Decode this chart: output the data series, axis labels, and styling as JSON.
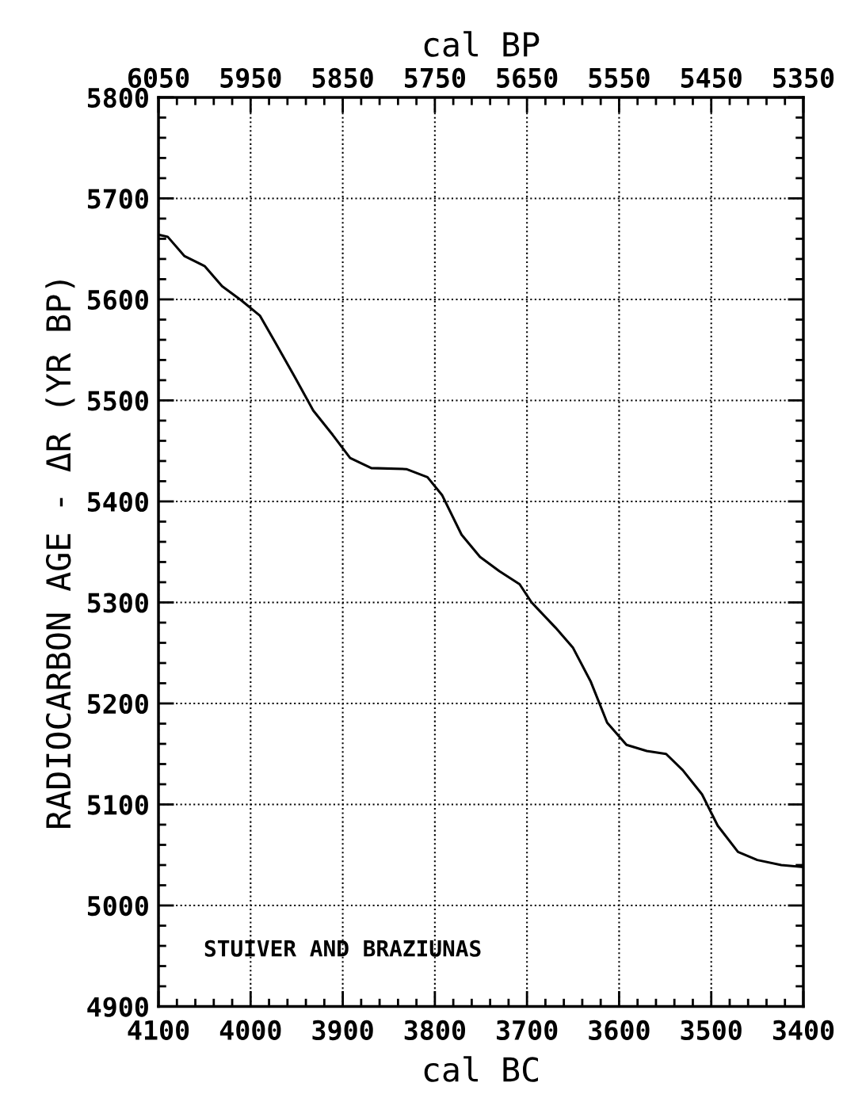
{
  "chart_data": {
    "type": "line",
    "xlabel": "cal BC",
    "x2label": "cal BP",
    "ylabel": "RADIOCARBON AGE - ΔR (YR BP)",
    "annotations": [
      "STUIVER AND BRAZIUNAS"
    ],
    "xlim": [
      4100,
      3400
    ],
    "xticks": [
      4100,
      4000,
      3900,
      3800,
      3700,
      3600,
      3500,
      3400
    ],
    "x2lim": [
      6050,
      5350
    ],
    "x2ticks": [
      6050,
      5950,
      5850,
      5750,
      5650,
      5550,
      5450,
      5350
    ],
    "ylim": [
      4900,
      5800
    ],
    "yticks": [
      4900,
      5000,
      5100,
      5200,
      5300,
      5400,
      5500,
      5600,
      5700,
      5800
    ],
    "grid": true,
    "marker": "none",
    "line_style": "solid",
    "series": [
      {
        "color": "#000000",
        "x": [
          4100,
          4090,
          4072,
          4050,
          4031,
          4010,
          3990,
          3973,
          3952,
          3932,
          3911,
          3892,
          3869,
          3831,
          3808,
          3792,
          3771,
          3751,
          3730,
          3708,
          3695,
          3669,
          3650,
          3631,
          3613,
          3592,
          3570,
          3549,
          3531,
          3510,
          3493,
          3471,
          3450,
          3424,
          3400
        ],
        "values": [
          5664,
          5662,
          5643,
          5633,
          5613,
          5599,
          5584,
          5557,
          5523,
          5490,
          5466,
          5443,
          5433,
          5432,
          5424,
          5406,
          5367,
          5345,
          5331,
          5318,
          5300,
          5275,
          5255,
          5222,
          5181,
          5159,
          5153,
          5150,
          5134,
          5110,
          5079,
          5053,
          5045,
          5040,
          5038
        ]
      }
    ]
  }
}
